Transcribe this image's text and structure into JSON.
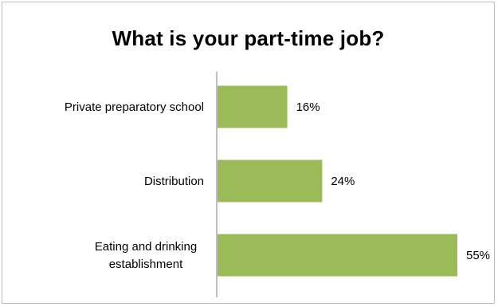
{
  "chart_data": {
    "type": "bar",
    "orientation": "horizontal",
    "title": "What is your part-time  job?",
    "categories": [
      "Private preparatory school",
      "Distribution",
      "Eating and drinking establishment"
    ],
    "category_lines": [
      [
        "Private preparatory school"
      ],
      [
        "Distribution"
      ],
      [
        "Eating and drinking",
        "establishment"
      ]
    ],
    "values": [
      16,
      24,
      55
    ],
    "data_labels": [
      "16%",
      "24%",
      "55%"
    ],
    "xlim": [
      0,
      55
    ],
    "grid": false,
    "legend": "none",
    "colors": {
      "bar": "#9bbb59",
      "axis": "#7f7f7f",
      "border": "#bfbfbf"
    }
  }
}
